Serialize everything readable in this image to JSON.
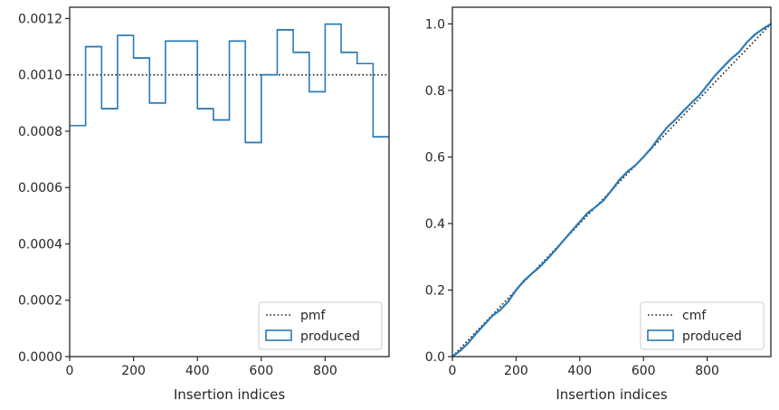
{
  "figure": {
    "colors": {
      "produced": "#2a7ab5",
      "reference": "#1a1a1a",
      "axes": "#262626",
      "legend_border": "#cccccc"
    }
  },
  "chart_data": [
    {
      "type": "histogram-step",
      "xlabel": "Insertion indices",
      "ylabel": "",
      "xlim": [
        0,
        1000
      ],
      "ylim": [
        0,
        0.00124
      ],
      "grid": false,
      "legend_placement": "lower-right",
      "x_ticks": [
        "0",
        "200",
        "400",
        "600",
        "800"
      ],
      "y_ticks": [
        "0.0000",
        "0.0002",
        "0.0004",
        "0.0006",
        "0.0008",
        "0.0010",
        "0.0012"
      ],
      "reference": {
        "name": "pmf",
        "style": "dotted",
        "value": 0.001
      },
      "series": [
        {
          "name": "produced",
          "bin_edges": [
            0,
            50,
            100,
            150,
            200,
            250,
            300,
            350,
            400,
            450,
            500,
            550,
            600,
            650,
            700,
            750,
            800,
            850,
            900,
            950,
            1000
          ],
          "values": [
            0.00082,
            0.0011,
            0.00088,
            0.00114,
            0.00106,
            0.0009,
            0.00112,
            0.00112,
            0.00088,
            0.00084,
            0.00112,
            0.00076,
            0.001,
            0.00116,
            0.00108,
            0.00094,
            0.00118,
            0.00108,
            0.00104,
            0.00078
          ]
        }
      ]
    },
    {
      "type": "line-step",
      "xlabel": "Insertion indices",
      "ylabel": "",
      "xlim": [
        0,
        1000
      ],
      "ylim": [
        0,
        1.05
      ],
      "grid": false,
      "legend_placement": "lower-right",
      "x_ticks": [
        "0",
        "200",
        "400",
        "600",
        "800"
      ],
      "y_ticks": [
        "0.0",
        "0.2",
        "0.4",
        "0.6",
        "0.8",
        "1.0"
      ],
      "reference": {
        "name": "cmf",
        "style": "dotted",
        "from": [
          0,
          0
        ],
        "to": [
          1000,
          1
        ]
      },
      "series": [
        {
          "name": "produced",
          "x": [
            0,
            25,
            50,
            75,
            100,
            125,
            150,
            175,
            200,
            225,
            250,
            275,
            300,
            325,
            350,
            375,
            400,
            425,
            450,
            475,
            500,
            525,
            550,
            575,
            600,
            625,
            650,
            675,
            700,
            725,
            750,
            775,
            800,
            825,
            850,
            875,
            900,
            925,
            950,
            975,
            1000
          ],
          "y": [
            0.0,
            0.018,
            0.041,
            0.07,
            0.096,
            0.122,
            0.14,
            0.165,
            0.2,
            0.228,
            0.25,
            0.27,
            0.295,
            0.322,
            0.35,
            0.378,
            0.405,
            0.432,
            0.45,
            0.47,
            0.5,
            0.532,
            0.556,
            0.575,
            0.6,
            0.627,
            0.66,
            0.69,
            0.712,
            0.738,
            0.762,
            0.785,
            0.815,
            0.845,
            0.87,
            0.895,
            0.915,
            0.945,
            0.968,
            0.985,
            1.0
          ]
        }
      ]
    }
  ]
}
